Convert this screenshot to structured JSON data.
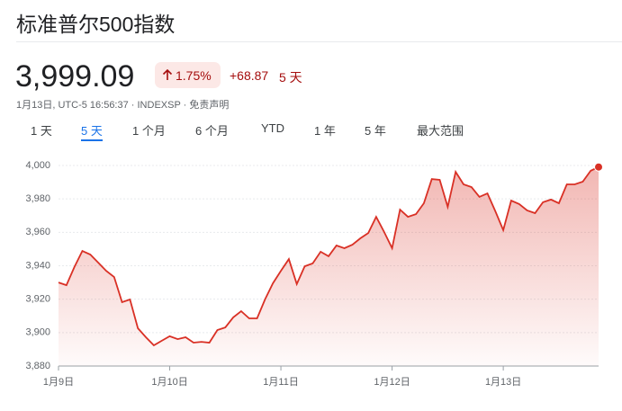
{
  "header": {
    "title": "标准普尔500指数"
  },
  "quote": {
    "price": "3,999.09",
    "change_percent": "1.75%",
    "change": "+68.87",
    "period": "5 天",
    "info": "1月13日, UTC-5 16:56:37 · INDEXSP · ",
    "disclaimer": "免责声明"
  },
  "tabs": [
    "1 天",
    "5 天",
    "1 个月",
    "6 个月",
    "YTD",
    "1 年",
    "5 年",
    "最大范围"
  ],
  "selected_tab": 1,
  "chart_data": {
    "type": "area",
    "categories": [
      "1月9日",
      null,
      null,
      null,
      null,
      null,
      null,
      null,
      null,
      null,
      null,
      null,
      null,
      null,
      "1月10日",
      null,
      null,
      null,
      null,
      null,
      null,
      null,
      null,
      null,
      null,
      null,
      null,
      null,
      "1月11日",
      null,
      null,
      null,
      null,
      null,
      null,
      null,
      null,
      null,
      null,
      null,
      null,
      null,
      "1月12日",
      null,
      null,
      null,
      null,
      null,
      null,
      null,
      null,
      null,
      null,
      null,
      null,
      null,
      "1月13日",
      null,
      null,
      null,
      null,
      null,
      null,
      null,
      null,
      null,
      null,
      null,
      null
    ],
    "series": [
      {
        "color": "#d93025",
        "values": [
          3930.0,
          3928.4,
          3939.2,
          3948.9,
          3946.7,
          3941.9,
          3937.0,
          3933.3,
          3918.2,
          3919.8,
          3902.6,
          3897.2,
          3892.4,
          3895.1,
          3897.8,
          3896.1,
          3897.2,
          3894.0,
          3894.5,
          3894.0,
          3901.5,
          3903.1,
          3909.1,
          3912.8,
          3908.5,
          3908.5,
          3919.8,
          3929.5,
          3937.0,
          3944.0,
          3929.0,
          3939.7,
          3941.4,
          3948.4,
          3945.7,
          3952.1,
          3950.5,
          3952.6,
          3956.4,
          3959.6,
          3969.3,
          3960.2,
          3950.5,
          3973.6,
          3969.3,
          3970.9,
          3977.4,
          3991.9,
          3991.4,
          3975.2,
          3996.2,
          3988.7,
          3987.1,
          3981.2,
          3983.3,
          3972.6,
          3961.3,
          3979.0,
          3976.9,
          3973.1,
          3971.5,
          3978.0,
          3979.6,
          3977.4,
          3988.7,
          3988.7,
          3990.3,
          3996.8,
          3999.09
        ]
      }
    ],
    "ylim": [
      3880,
      4000
    ],
    "yticks": [
      {
        "value": 3880,
        "label": "3,880"
      },
      {
        "value": 3900,
        "label": "3,900"
      },
      {
        "value": 3920,
        "label": "3,920"
      },
      {
        "value": 3940,
        "label": "3,940"
      },
      {
        "value": 3960,
        "label": "3,960"
      },
      {
        "value": 3980,
        "label": "3,980"
      },
      {
        "value": 4000,
        "label": "4,000"
      }
    ],
    "grid": true
  }
}
